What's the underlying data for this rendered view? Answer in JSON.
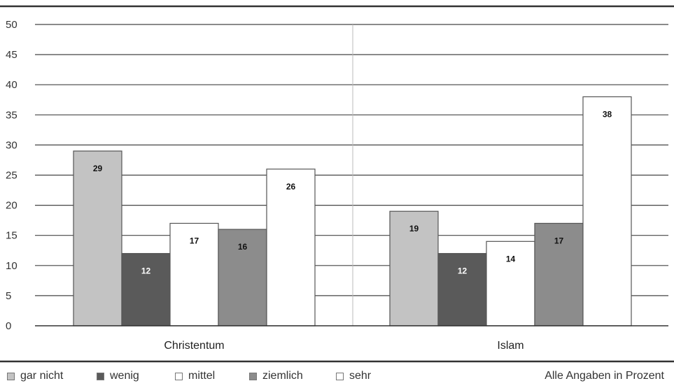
{
  "chart_data": {
    "type": "bar",
    "categories": [
      "Christentum",
      "Islam"
    ],
    "series": [
      {
        "name": "gar nicht",
        "values": [
          29,
          19
        ],
        "color": "#c3c3c3"
      },
      {
        "name": "wenig",
        "values": [
          12,
          12
        ],
        "color": "#5a5a5a"
      },
      {
        "name": "mittel",
        "values": [
          17,
          14
        ],
        "color": "#ffffff"
      },
      {
        "name": "ziemlich",
        "values": [
          16,
          17
        ],
        "color": "#8c8c8c"
      },
      {
        "name": "sehr",
        "values": [
          26,
          38
        ],
        "color": "#ffffff"
      }
    ],
    "data_labels": [
      [
        "29",
        "19"
      ],
      [
        "12",
        "12"
      ],
      [
        "17",
        "14"
      ],
      [
        "16",
        "17"
      ],
      [
        "26",
        "38"
      ]
    ],
    "yticks": [
      "0",
      "5",
      "10",
      "15",
      "20",
      "25",
      "30",
      "35",
      "40",
      "45",
      "50"
    ],
    "ylim": [
      0,
      50
    ],
    "grid": true,
    "legend_position": "bottom-left",
    "note": "Alle Angaben in Prozent"
  }
}
